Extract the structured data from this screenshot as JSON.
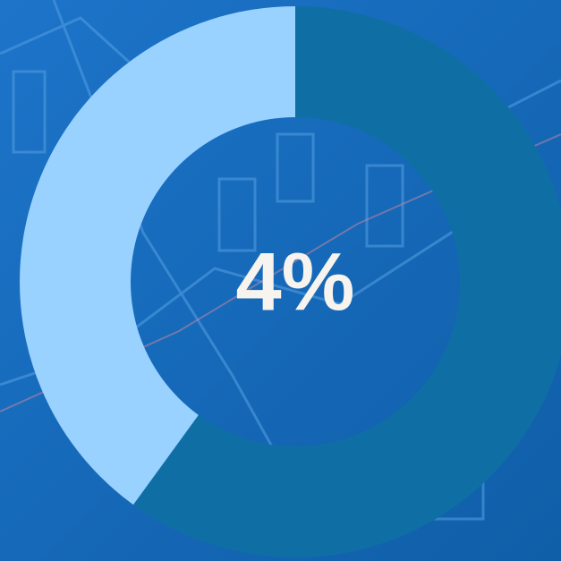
{
  "chart_data": {
    "type": "donut",
    "center_label": "4%",
    "values": [
      60,
      40
    ],
    "colors": [
      "#0f6fa5",
      "#99d1ff"
    ]
  }
}
